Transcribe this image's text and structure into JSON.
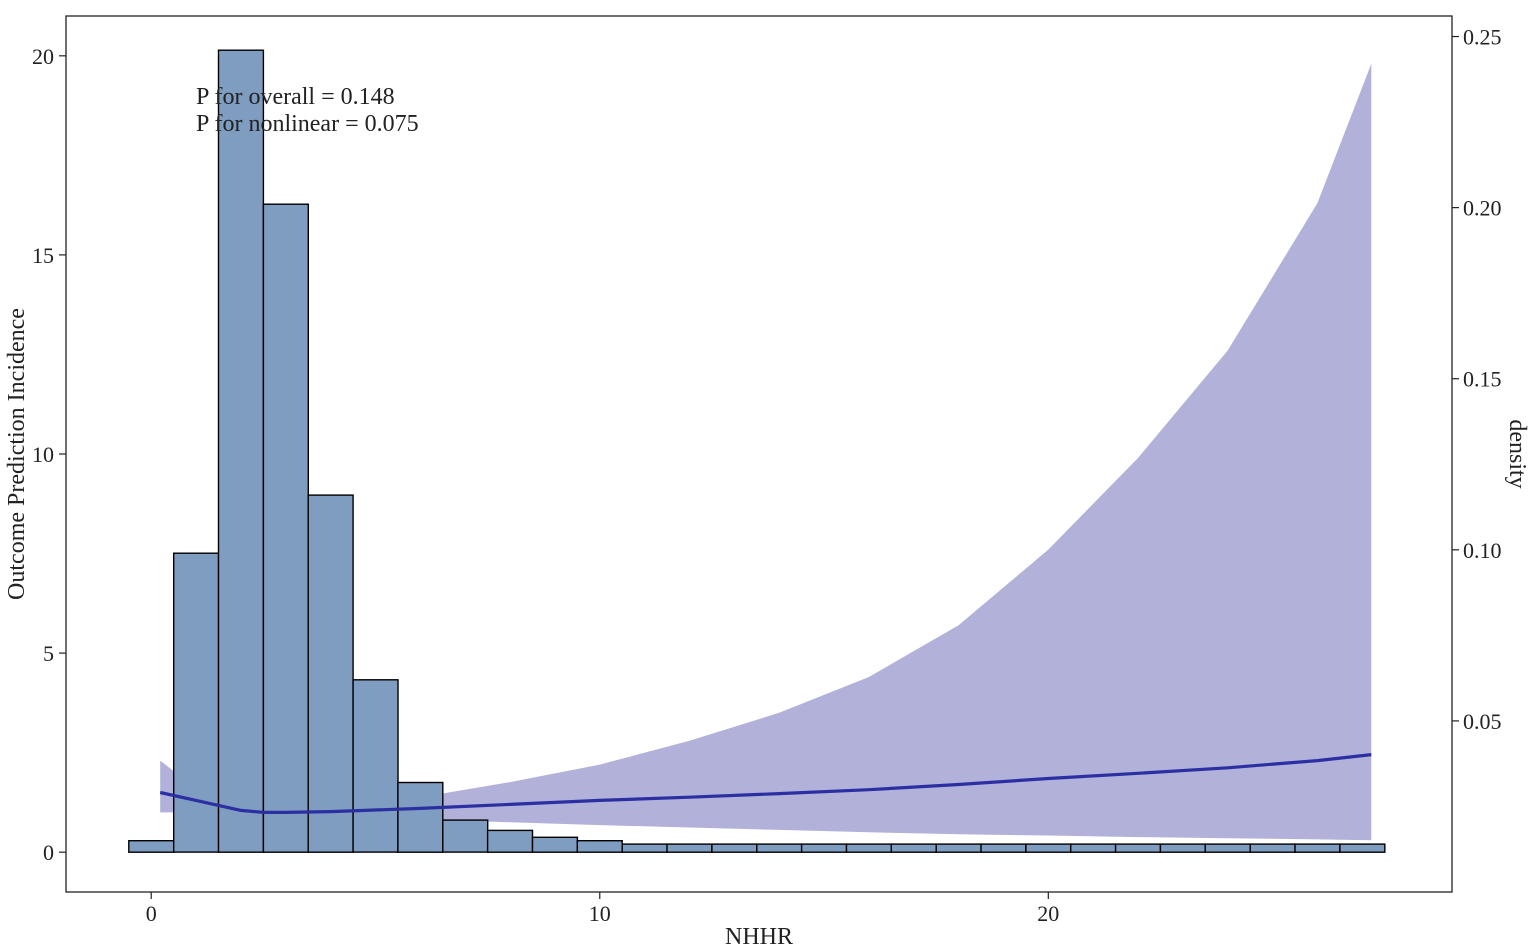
{
  "chart_data": {
    "type": "area",
    "title": "",
    "xlabel": "NHHR",
    "ylabel": "Outcome Prediction Incidence",
    "y2label": "density",
    "xlim": [
      -1.9,
      29
    ],
    "ylim": [
      -1,
      21
    ],
    "y2lim": [
      0,
      0.256
    ],
    "x_ticks": [
      0,
      10,
      20
    ],
    "y_ticks": [
      0,
      5,
      10,
      15,
      20
    ],
    "y2_ticks": [
      0.05,
      0.1,
      0.15,
      0.2,
      0.25
    ],
    "y2_tick_labels": [
      "0.05",
      "0.10",
      "0.15",
      "0.20",
      "0.25"
    ],
    "grid": false,
    "annotations": [
      "P for overall = 0.148",
      "P for nonlinear = 0.075"
    ],
    "colors": {
      "histogram_fill": "#7f9cc1",
      "histogram_stroke": "#000000",
      "ci_band": "#b1b1da",
      "curve": "#2b2fa2"
    },
    "histogram": {
      "bin_width": 1,
      "bin_centers": [
        0,
        1,
        2,
        3,
        4,
        5,
        6,
        7,
        8,
        9,
        10,
        11,
        12,
        13,
        14,
        15,
        16,
        17,
        18,
        19,
        20,
        21,
        22,
        23,
        24,
        25,
        26,
        27
      ],
      "density": [
        0.015,
        0.099,
        0.246,
        0.201,
        0.116,
        0.062,
        0.032,
        0.021,
        0.018,
        0.016,
        0.015,
        0.014,
        0.014,
        0.014,
        0.014,
        0.014,
        0.014,
        0.014,
        0.014,
        0.014,
        0.014,
        0.014,
        0.014,
        0.014,
        0.014,
        0.014,
        0.014,
        0.014
      ]
    },
    "series": [
      {
        "x": [
          0.2,
          1,
          2,
          2.5,
          3,
          4,
          6,
          8,
          10,
          12,
          14,
          16,
          18,
          20,
          22,
          24,
          26,
          27.2
        ],
        "y": [
          1.5,
          1.3,
          1.05,
          1.0,
          1.0,
          1.02,
          1.1,
          1.2,
          1.3,
          1.38,
          1.47,
          1.57,
          1.7,
          1.85,
          1.98,
          2.12,
          2.3,
          2.45
        ],
        "lower": [
          1.0,
          1.0,
          1.0,
          0.98,
          0.95,
          0.9,
          0.82,
          0.75,
          0.68,
          0.62,
          0.56,
          0.5,
          0.45,
          0.42,
          0.38,
          0.35,
          0.32,
          0.3
        ],
        "upper": [
          2.3,
          1.6,
          1.12,
          1.03,
          1.06,
          1.2,
          1.38,
          1.76,
          2.2,
          2.8,
          3.5,
          4.4,
          5.7,
          7.6,
          9.9,
          12.6,
          16.3,
          19.8
        ]
      }
    ]
  }
}
